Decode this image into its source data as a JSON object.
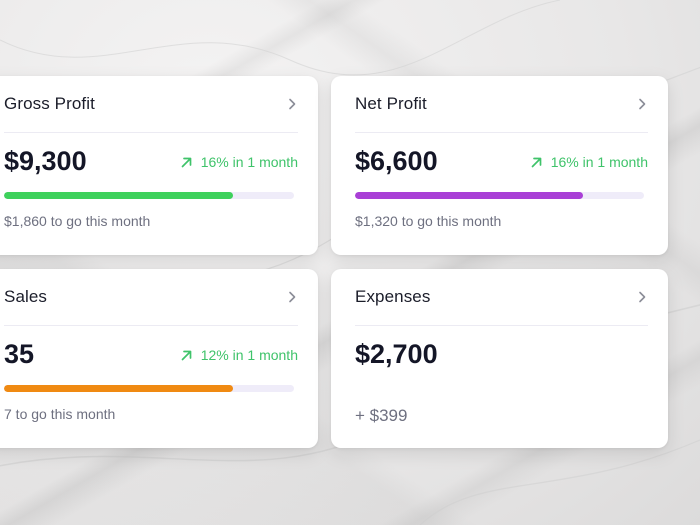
{
  "cards": [
    {
      "title": "Gross Profit",
      "value": "$9,300",
      "trend": "16% in 1 month",
      "progress": 0.79,
      "bar_color": "#3ed15c",
      "subtext": "$1,860 to go this month"
    },
    {
      "title": "Net Profit",
      "value": "$6,600",
      "trend": "16% in 1 month",
      "progress": 0.79,
      "bar_color": "#a93fd6",
      "subtext": "$1,320 to go this month"
    },
    {
      "title": "Sales",
      "value": "35",
      "trend": "12% in 1 month",
      "progress": 0.79,
      "bar_color": "#f08a12",
      "subtext": "7 to go this month"
    },
    {
      "title": "Expenses",
      "value": "$2,700",
      "subtext": "+ $399"
    }
  ],
  "colors": {
    "trend_up": "#3fc36a",
    "bar_track": "#efecf9"
  },
  "icons": {
    "header_action": "chevron-right-icon",
    "trend": "arrow-up-right-icon"
  }
}
